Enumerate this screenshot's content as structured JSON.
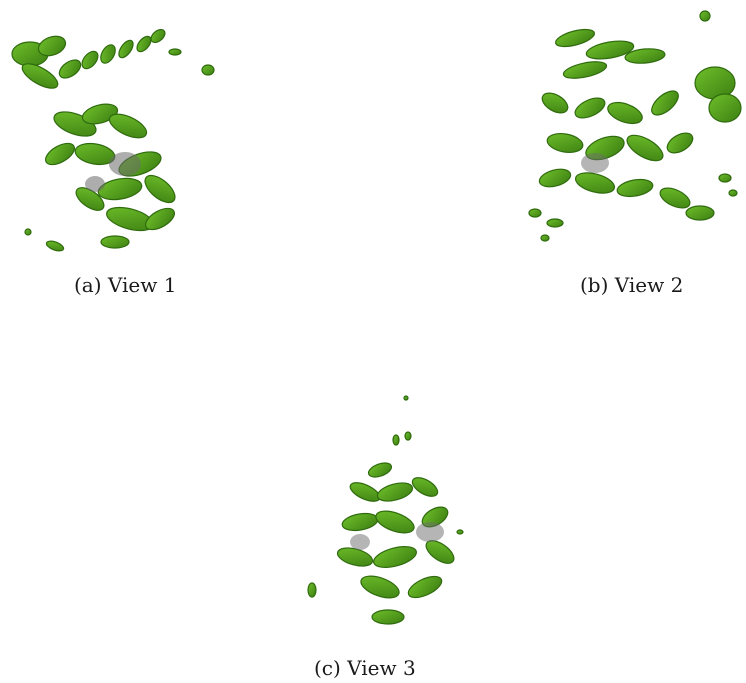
{
  "figure": {
    "panels": [
      {
        "label": "(a) View 1"
      },
      {
        "label": "(b) View 2"
      },
      {
        "label": "(c) View 3"
      }
    ],
    "colors": {
      "density_green": "#4e9a1a",
      "density_green_light": "#6fbf2a",
      "density_green_dark": "#2f6b0e",
      "interior_grey": "#6b6b6b",
      "background": "#ffffff"
    }
  }
}
